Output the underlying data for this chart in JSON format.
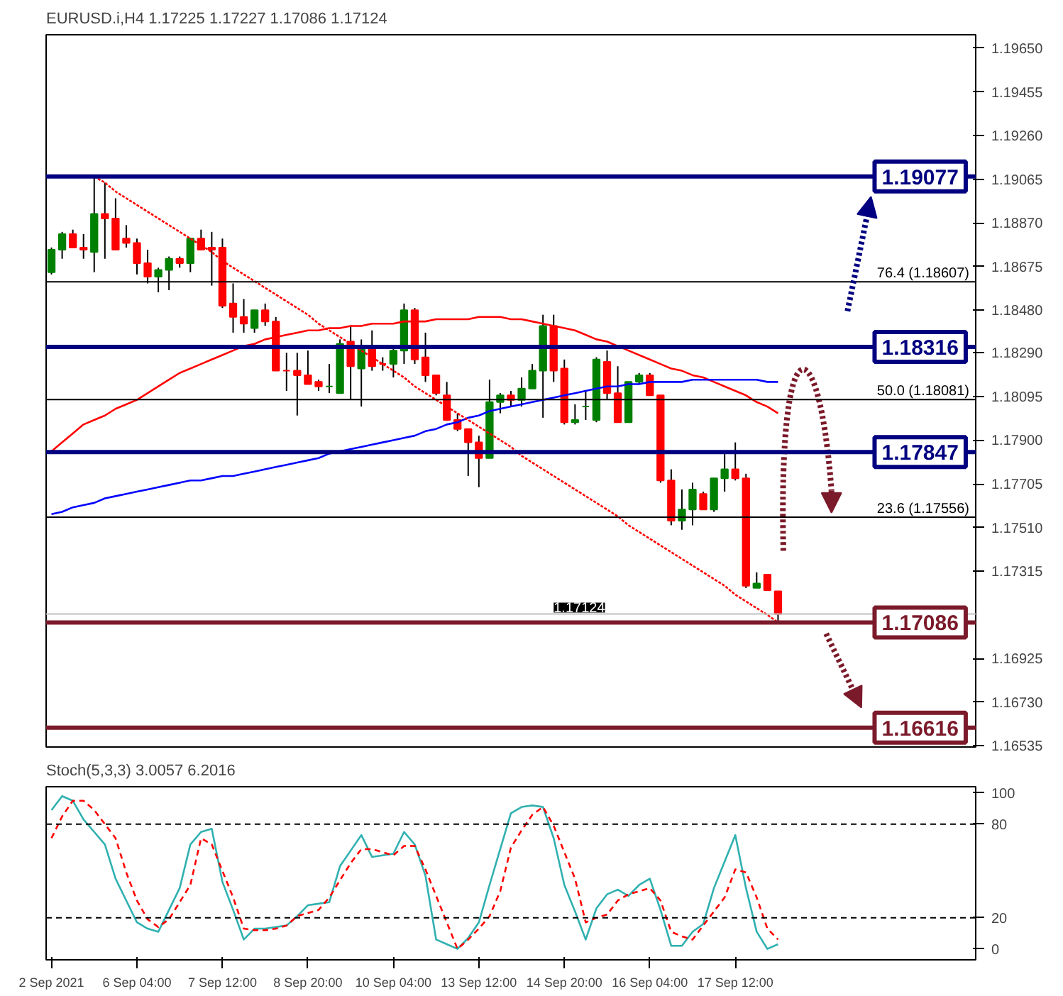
{
  "chart_data": [
    {
      "type": "candlestick",
      "title": "EURUSD.i,H4 1.17225 1.17227 1.17086 1.17124",
      "grid": false,
      "tick_labels": "y",
      "categories": [
        null,
        null,
        null,
        null,
        null,
        null,
        null,
        null,
        null,
        null,
        null,
        null,
        null,
        null,
        null,
        null,
        null,
        null,
        null,
        null,
        null,
        null,
        null,
        null,
        null,
        null,
        null,
        null,
        null,
        null,
        null,
        null,
        null,
        null,
        null,
        null,
        null,
        null,
        null,
        null,
        null,
        null,
        null,
        null,
        null,
        null,
        null,
        null,
        null,
        null,
        null,
        null,
        null,
        null,
        null,
        null,
        null,
        null,
        null,
        null,
        null,
        null,
        null,
        null,
        null,
        null,
        null,
        null,
        null
      ],
      "ohlc": [
        [
          1.1865,
          1.1876,
          1.1864,
          1.1875
        ],
        [
          1.1875,
          1.1883,
          1.1871,
          1.1882
        ],
        [
          1.1882,
          1.1884,
          1.1876,
          1.1876
        ],
        [
          1.1876,
          1.1882,
          1.1871,
          1.1875
        ],
        [
          1.1874,
          1.19077,
          1.1865,
          1.1891
        ],
        [
          1.1891,
          1.1905,
          1.1871,
          1.1889
        ],
        [
          1.1889,
          1.1898,
          1.1875,
          1.1875
        ],
        [
          1.188,
          1.1886,
          1.1876,
          1.1878
        ],
        [
          1.1878,
          1.188,
          1.1864,
          1.1869
        ],
        [
          1.1869,
          1.1875,
          1.186,
          1.1863
        ],
        [
          1.1863,
          1.1867,
          1.1856,
          1.1866
        ],
        [
          1.1866,
          1.1872,
          1.1857,
          1.1871
        ],
        [
          1.1871,
          1.1872,
          1.1867,
          1.1869
        ],
        [
          1.1869,
          1.188,
          1.1865,
          1.188
        ],
        [
          1.188,
          1.1884,
          1.1875,
          1.1875
        ],
        [
          1.1876,
          1.1883,
          1.1859,
          1.1875
        ],
        [
          1.1876,
          1.188,
          1.1849,
          1.185
        ],
        [
          1.1851,
          1.186,
          1.1838,
          1.1845
        ],
        [
          1.1845,
          1.1853,
          1.1838,
          1.1842
        ],
        [
          1.184,
          1.1848,
          1.1838,
          1.1848
        ],
        [
          1.1848,
          1.1851,
          1.1841,
          1.1843
        ],
        [
          1.1843,
          1.1845,
          1.1821,
          1.1821
        ],
        [
          1.1821,
          1.1829,
          1.1812,
          1.1821
        ],
        [
          1.1821,
          1.1829,
          1.1801,
          1.1819
        ],
        [
          1.1819,
          1.183,
          1.1815,
          1.1815
        ],
        [
          1.1816,
          1.1817,
          1.1812,
          1.1814
        ],
        [
          1.1814,
          1.1824,
          1.1811,
          1.1814
        ],
        [
          1.1811,
          1.1835,
          1.1811,
          1.1833
        ],
        [
          1.1834,
          1.1841,
          1.1808,
          1.1823
        ],
        [
          1.1822,
          1.1835,
          1.1805,
          1.1831
        ],
        [
          1.1831,
          1.1839,
          1.1821,
          1.1823
        ],
        [
          1.1824,
          1.1827,
          1.1821,
          1.1824
        ],
        [
          1.1824,
          1.1832,
          1.1818,
          1.183
        ],
        [
          1.183,
          1.1851,
          1.1824,
          1.1848
        ],
        [
          1.1848,
          1.1849,
          1.1824,
          1.1826
        ],
        [
          1.1827,
          1.1838,
          1.1816,
          1.1819
        ],
        [
          1.1819,
          1.1819,
          1.181,
          1.1811
        ],
        [
          1.181,
          1.1816,
          1.1799,
          1.1799
        ],
        [
          1.1799,
          1.1802,
          1.1794,
          1.1795
        ],
        [
          1.1795,
          1.1795,
          1.1774,
          1.1789
        ],
        [
          1.1789,
          1.1792,
          1.1769,
          1.1782
        ],
        [
          1.1782,
          1.1817,
          1.1782,
          1.1807
        ],
        [
          1.1807,
          1.1811,
          1.1802,
          1.181
        ],
        [
          1.181,
          1.1812,
          1.1805,
          1.1808
        ],
        [
          1.1808,
          1.1818,
          1.1805,
          1.1813
        ],
        [
          1.1813,
          1.1824,
          1.1813,
          1.1821
        ],
        [
          1.1821,
          1.1846,
          1.18,
          1.1841
        ],
        [
          1.1841,
          1.1846,
          1.1816,
          1.1821
        ],
        [
          1.1822,
          1.1826,
          1.1797,
          1.1798
        ],
        [
          1.1798,
          1.1806,
          1.1797,
          1.1799
        ],
        [
          1.1805,
          1.1812,
          1.1799,
          1.1805
        ],
        [
          1.1799,
          1.1827,
          1.1798,
          1.1826
        ],
        [
          1.1825,
          1.183,
          1.1808,
          1.1811
        ],
        [
          1.1811,
          1.1823,
          1.1798,
          1.1798
        ],
        [
          1.1798,
          1.1816,
          1.1798,
          1.1816
        ],
        [
          1.1816,
          1.182,
          1.1815,
          1.1819
        ],
        [
          1.1819,
          1.182,
          1.181,
          1.181
        ],
        [
          1.181,
          1.181,
          1.1771,
          1.1772
        ],
        [
          1.1772,
          1.1777,
          1.1752,
          1.1754
        ],
        [
          1.1754,
          1.1768,
          1.175,
          1.1759
        ],
        [
          1.1759,
          1.1771,
          1.1752,
          1.1768
        ],
        [
          1.1766,
          1.1767,
          1.1759,
          1.1759
        ],
        [
          1.1759,
          1.1773,
          1.1758,
          1.1773
        ],
        [
          1.1773,
          1.1785,
          1.1767,
          1.1777
        ],
        [
          1.1777,
          1.1789,
          1.1772,
          1.1773
        ],
        [
          1.1773,
          1.1775,
          1.1724,
          1.1725
        ],
        [
          1.1724,
          1.1731,
          1.1724,
          1.1726
        ],
        [
          1.173,
          1.173,
          1.1723,
          1.1723
        ],
        [
          1.17225,
          1.17227,
          1.17086,
          1.17124
        ]
      ],
      "colors": [
        "#008000",
        "#008000",
        "#ff0000",
        "#ff0000",
        "#008000",
        "#ff0000",
        "#ff0000",
        "#ff0000",
        "#ff0000",
        "#ff0000",
        "#008000",
        "#008000",
        "#ff0000",
        "#008000",
        "#ff0000",
        "#ff0000",
        "#ff0000",
        "#ff0000",
        "#ff0000",
        "#008000",
        "#ff0000",
        "#ff0000",
        "#ff0000",
        "#ff0000",
        "#ff0000",
        "#ff0000",
        "#008000",
        "#008000",
        "#ff0000",
        "#008000",
        "#ff0000",
        "#ff0000",
        "#008000",
        "#008000",
        "#ff0000",
        "#ff0000",
        "#ff0000",
        "#ff0000",
        "#ff0000",
        "#ff0000",
        "#ff0000",
        "#008000",
        "#008000",
        "#ff0000",
        "#008000",
        "#008000",
        "#008000",
        "#ff0000",
        "#ff0000",
        "#008000",
        "#008000",
        "#008000",
        "#ff0000",
        "#ff0000",
        "#008000",
        "#008000",
        "#ff0000",
        "#ff0000",
        "#ff0000",
        "#008000",
        "#008000",
        "#ff0000",
        "#008000",
        "#008000",
        "#ff0000",
        "#ff0000",
        "#008000",
        "#ff0000",
        "#ff0000"
      ],
      "series": [
        {
          "type": "line",
          "color": "#ff0000",
          "values": [
            1.1785,
            1.1789,
            1.1793,
            1.1797,
            1.1799,
            1.1801,
            1.1804,
            1.1806,
            1.1808,
            1.1811,
            1.1814,
            1.1817,
            1.182,
            1.1822,
            1.1824,
            1.1826,
            1.1828,
            1.183,
            1.1832,
            1.1833,
            1.1835,
            1.1836,
            1.1837,
            1.1838,
            1.1839,
            1.1839,
            1.184,
            1.184,
            1.1841,
            1.1841,
            1.1842,
            1.1842,
            1.1842,
            1.1843,
            1.1843,
            1.1843,
            1.1844,
            1.1844,
            1.1844,
            1.1844,
            1.1845,
            1.1845,
            1.1845,
            1.1844,
            1.1844,
            1.1843,
            1.1842,
            1.1841,
            1.184,
            1.1839,
            1.1837,
            1.1835,
            1.1834,
            1.1832,
            1.183,
            1.1828,
            1.1826,
            1.1824,
            1.1822,
            1.1821,
            1.1819,
            1.1818,
            1.1816,
            1.1814,
            1.1812,
            1.181,
            1.1807,
            1.1805,
            1.1802
          ]
        },
        {
          "type": "line",
          "color": "#0000ff",
          "values": [
            1.1757,
            1.1758,
            1.176,
            1.1761,
            1.1762,
            1.1764,
            1.1765,
            1.1766,
            1.1767,
            1.1768,
            1.1769,
            1.177,
            1.1771,
            1.1772,
            1.1772,
            1.1773,
            1.1774,
            1.1774,
            1.1775,
            1.1776,
            1.1777,
            1.1778,
            1.1779,
            1.178,
            1.1781,
            1.1782,
            1.1784,
            1.1785,
            1.1786,
            1.1787,
            1.1788,
            1.1789,
            1.179,
            1.1791,
            1.1792,
            1.1794,
            1.1795,
            1.1797,
            1.1798,
            1.18,
            1.1801,
            1.1803,
            1.1804,
            1.1805,
            1.1806,
            1.1807,
            1.1808,
            1.1809,
            1.181,
            1.1811,
            1.1812,
            1.1813,
            1.1814,
            1.1814,
            1.1815,
            1.1815,
            1.1816,
            1.1816,
            1.1816,
            1.1816,
            1.1817,
            1.1817,
            1.1817,
            1.1817,
            1.1817,
            1.1817,
            1.1817,
            1.1816,
            1.1816
          ]
        },
        {
          "type": "line",
          "color": "#ff0000",
          "line_style": "dotted",
          "values": [
            null,
            null,
            null,
            null,
            1.19077,
            1.1905,
            1.1901,
            1.1898,
            1.1895,
            1.1892,
            1.1889,
            1.1886,
            1.1883,
            1.188,
            1.1877,
            1.1874,
            1.187,
            1.1867,
            1.1864,
            1.1861,
            1.1858,
            1.1855,
            1.1852,
            1.1849,
            1.1846,
            1.1842,
            1.1839,
            1.1836,
            1.1833,
            1.183,
            1.1827,
            1.1824,
            1.1821,
            1.1818,
            1.1814,
            1.1811,
            1.1808,
            1.1805,
            1.1802,
            1.1799,
            1.1796,
            1.1793,
            1.179,
            1.1787,
            1.1783,
            1.178,
            1.1777,
            1.1774,
            1.1771,
            1.1768,
            1.1765,
            1.1762,
            1.1759,
            1.1756,
            1.1752,
            1.1749,
            1.1746,
            1.1743,
            1.174,
            1.1737,
            1.1734,
            1.1731,
            1.1728,
            1.1725,
            1.1721,
            1.1718,
            1.1715,
            1.1712,
            1.17086
          ]
        }
      ],
      "ylim": [
        1.1653,
        1.1971
      ],
      "yticks": [
        {
          "value": 1.1965,
          "label": "1.19650"
        },
        {
          "value": 1.19455,
          "label": "1.19455"
        },
        {
          "value": 1.1926,
          "label": "1.19260"
        },
        {
          "value": 1.19065,
          "label": "1.19065"
        },
        {
          "value": 1.1887,
          "label": "1.18870"
        },
        {
          "value": 1.18675,
          "label": "1.18675"
        },
        {
          "value": 1.1848,
          "label": "1.18480"
        },
        {
          "value": 1.1829,
          "label": "1.18290"
        },
        {
          "value": 1.18095,
          "label": "1.18095"
        },
        {
          "value": 1.179,
          "label": "1.17900"
        },
        {
          "value": 1.17705,
          "label": "1.17705"
        },
        {
          "value": 1.1751,
          "label": "1.17510"
        },
        {
          "value": 1.17315,
          "label": "1.17315"
        },
        {
          "value": 1.16925,
          "label": "1.16925"
        },
        {
          "value": 1.1673,
          "label": "1.16730"
        },
        {
          "value": 1.16535,
          "label": "1.16535"
        }
      ],
      "ref_lines": [
        {
          "axis": "y",
          "value": 1.19077,
          "label": "1.19077",
          "color": "#000080"
        },
        {
          "axis": "y",
          "value": 1.18607,
          "label": "76.4 (1.18607)",
          "color": "#000000"
        },
        {
          "axis": "y",
          "value": 1.18316,
          "label": "1.18316",
          "color": "#000080"
        },
        {
          "axis": "y",
          "value": 1.18081,
          "label": "50.0 (1.18081)",
          "color": "#000000"
        },
        {
          "axis": "y",
          "value": 1.17847,
          "label": "1.17847",
          "color": "#000080"
        },
        {
          "axis": "y",
          "value": 1.17556,
          "label": "23.6 (1.17556)",
          "color": "#000000"
        },
        {
          "axis": "y",
          "value": 1.17124,
          "label": "1.17124",
          "color": "#c0c0c0"
        },
        {
          "axis": "y",
          "value": 1.17086,
          "label": "1.17086",
          "color": "#7b1a2a"
        },
        {
          "axis": "y",
          "value": 1.16616,
          "label": "1.16616",
          "color": "#7b1a2a"
        }
      ]
    },
    {
      "type": "line",
      "title": "Stoch(5,3,3) 3.0057 6.2016",
      "grid": false,
      "categories": [
        "2 Sep 2021",
        null,
        null,
        null,
        null,
        null,
        null,
        null,
        "6 Sep 04:00",
        null,
        null,
        null,
        null,
        null,
        null,
        null,
        "7 Sep 12:00",
        null,
        null,
        null,
        null,
        null,
        null,
        null,
        "8 Sep 20:00",
        null,
        null,
        null,
        null,
        null,
        null,
        null,
        "10 Sep 04:00",
        null,
        null,
        null,
        null,
        null,
        null,
        null,
        "13 Sep 12:00",
        null,
        null,
        null,
        null,
        null,
        null,
        null,
        "14 Sep 20:00",
        null,
        null,
        null,
        null,
        null,
        null,
        null,
        "16 Sep 04:00",
        null,
        null,
        null,
        null,
        null,
        null,
        null,
        "17 Sep 12:00",
        null,
        null,
        null,
        null
      ],
      "series": [
        {
          "color": "#30b0b0",
          "values": [
            89,
            98,
            95,
            83,
            75,
            67,
            45,
            31,
            17,
            13,
            11,
            25,
            39,
            67,
            75,
            77,
            43,
            25,
            6,
            13,
            13,
            14,
            15,
            21,
            28,
            29,
            30,
            53,
            63,
            73,
            59,
            60,
            61,
            75,
            67,
            47,
            6,
            3,
            0,
            7,
            17,
            41,
            64,
            87,
            91,
            92,
            91,
            71,
            41,
            24,
            6,
            26,
            35,
            38,
            34,
            41,
            45,
            25,
            2,
            2,
            11,
            16,
            39,
            56,
            73,
            39,
            11,
            0,
            3
          ]
        },
        {
          "color": "#ff0000",
          "line_style": "dashed",
          "values": [
            71,
            85,
            95,
            95,
            89,
            80,
            71,
            49,
            31,
            19,
            14,
            19,
            30,
            41,
            71,
            67,
            50,
            33,
            13,
            12,
            12,
            13,
            15,
            21,
            23,
            25,
            33,
            44,
            55,
            64,
            64,
            62,
            60,
            66,
            66,
            51,
            34,
            17,
            0,
            6,
            13,
            21,
            37,
            65,
            76,
            86,
            91,
            79,
            62,
            45,
            17,
            20,
            22,
            31,
            35,
            37,
            39,
            31,
            11,
            8,
            6,
            15,
            24,
            33,
            51,
            49,
            33,
            13,
            6
          ]
        }
      ],
      "ylim": [
        -7,
        104
      ],
      "yticks": [
        0,
        20,
        80,
        100
      ],
      "ref_lines": [
        {
          "axis": "y",
          "value": 80,
          "color": "#000000",
          "line_style": "dashed"
        },
        {
          "axis": "y",
          "value": 20,
          "color": "#000000",
          "line_style": "dashed"
        }
      ]
    }
  ]
}
